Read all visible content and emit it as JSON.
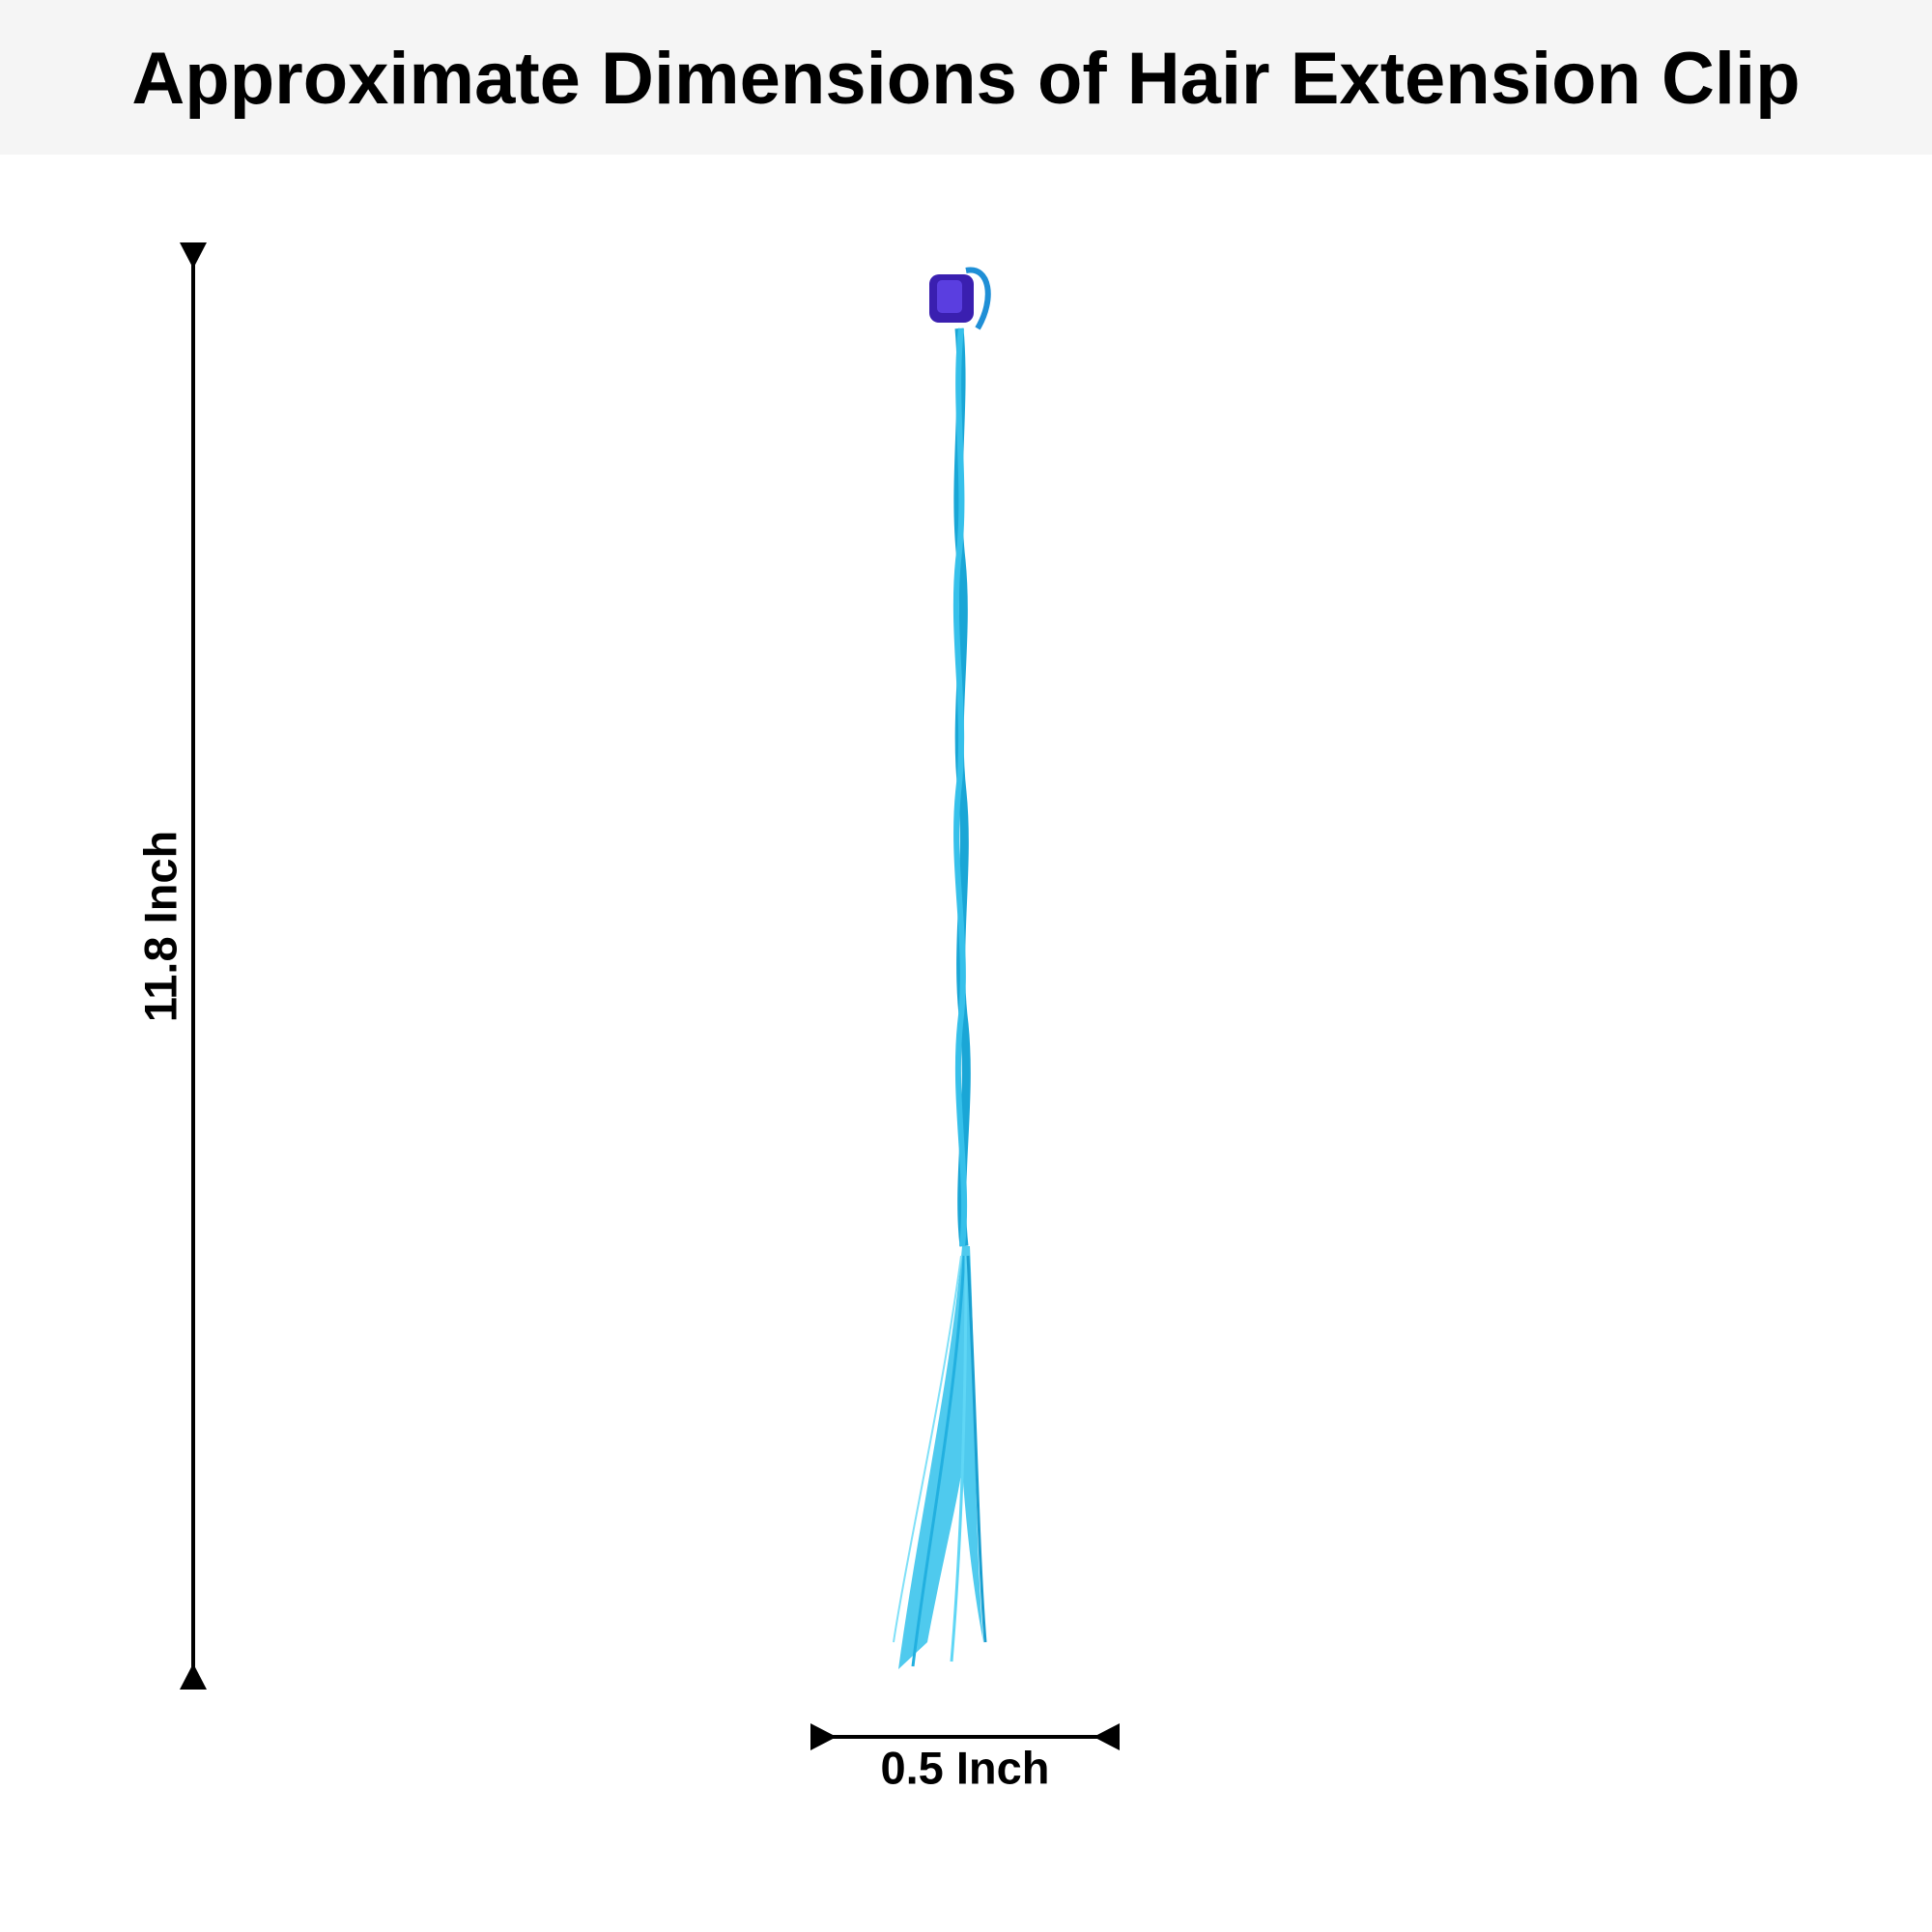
{
  "header": {
    "title": "Approximate Dimensions of Hair Extension Clip"
  },
  "dimensions": {
    "height_label": "11.8 Inch",
    "width_label": "0.5 Inch"
  }
}
